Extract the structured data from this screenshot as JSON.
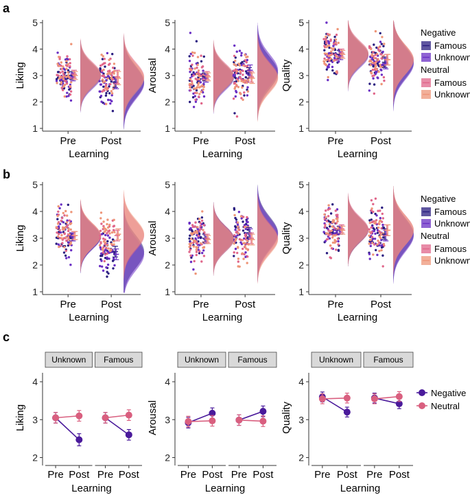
{
  "colors": {
    "neg_famous": "#2a1d80",
    "neg_unknown": "#6a2fc4",
    "neu_famous": "#e0668a",
    "neu_unknown": "#ee9578",
    "line_negative": "#4a1a9b",
    "line_neutral": "#d95f7f"
  },
  "chart_data": [
    {
      "panel": "a",
      "type": "raincloud",
      "ylabel": "Liking",
      "xlabel": "Learning",
      "categories": [
        "Pre",
        "Post"
      ],
      "ylim": [
        1,
        5
      ],
      "yticks": [
        1,
        2,
        3,
        4,
        5
      ],
      "series": [
        {
          "name": "Negative Famous",
          "pre": {
            "mean": 3.0,
            "ci": 0.15
          },
          "post": {
            "mean": 2.75,
            "ci": 0.2
          }
        },
        {
          "name": "Negative Unknown",
          "pre": {
            "mean": 2.95,
            "ci": 0.15
          },
          "post": {
            "mean": 2.7,
            "ci": 0.2
          }
        },
        {
          "name": "Neutral Famous",
          "pre": {
            "mean": 3.05,
            "ci": 0.15
          },
          "post": {
            "mean": 2.95,
            "ci": 0.25
          }
        },
        {
          "name": "Neutral Unknown",
          "pre": {
            "mean": 3.0,
            "ci": 0.15
          },
          "post": {
            "mean": 2.9,
            "ci": 0.25
          }
        }
      ]
    },
    {
      "panel": "a",
      "type": "raincloud",
      "ylabel": "Arousal",
      "xlabel": "Learning",
      "categories": [
        "Pre",
        "Post"
      ],
      "ylim": [
        1,
        5
      ],
      "yticks": [
        1,
        2,
        3,
        4,
        5
      ],
      "series": [
        {
          "name": "Negative Famous",
          "pre": {
            "mean": 2.95,
            "ci": 0.15
          },
          "post": {
            "mean": 3.1,
            "ci": 0.2
          }
        },
        {
          "name": "Negative Unknown",
          "pre": {
            "mean": 2.9,
            "ci": 0.15
          },
          "post": {
            "mean": 3.2,
            "ci": 0.2
          }
        },
        {
          "name": "Neutral Famous",
          "pre": {
            "mean": 3.0,
            "ci": 0.15
          },
          "post": {
            "mean": 2.95,
            "ci": 0.2
          }
        },
        {
          "name": "Neutral Unknown",
          "pre": {
            "mean": 2.95,
            "ci": 0.15
          },
          "post": {
            "mean": 2.9,
            "ci": 0.2
          }
        }
      ]
    },
    {
      "panel": "a",
      "type": "raincloud",
      "ylabel": "Quality",
      "xlabel": "Learning",
      "categories": [
        "Pre",
        "Post"
      ],
      "ylim": [
        1,
        5
      ],
      "yticks": [
        1,
        2,
        3,
        4,
        5
      ],
      "series": [
        {
          "name": "Negative Famous",
          "pre": {
            "mean": 3.8,
            "ci": 0.15
          },
          "post": {
            "mean": 3.5,
            "ci": 0.2
          }
        },
        {
          "name": "Negative Unknown",
          "pre": {
            "mean": 3.75,
            "ci": 0.15
          },
          "post": {
            "mean": 3.45,
            "ci": 0.2
          }
        },
        {
          "name": "Neutral Famous",
          "pre": {
            "mean": 3.85,
            "ci": 0.15
          },
          "post": {
            "mean": 3.6,
            "ci": 0.2
          }
        },
        {
          "name": "Neutral Unknown",
          "pre": {
            "mean": 3.8,
            "ci": 0.15
          },
          "post": {
            "mean": 3.6,
            "ci": 0.2
          }
        }
      ]
    },
    {
      "panel": "b",
      "type": "raincloud",
      "ylabel": "Liking",
      "xlabel": "Learning",
      "categories": [
        "Pre",
        "Post"
      ],
      "ylim": [
        1,
        5
      ],
      "yticks": [
        1,
        2,
        3,
        4,
        5
      ],
      "series": [
        {
          "name": "Negative Famous",
          "pre": {
            "mean": 3.05,
            "ci": 0.15
          },
          "post": {
            "mean": 2.5,
            "ci": 0.2
          }
        },
        {
          "name": "Negative Unknown",
          "pre": {
            "mean": 3.05,
            "ci": 0.15
          },
          "post": {
            "mean": 2.4,
            "ci": 0.2
          }
        },
        {
          "name": "Neutral Famous",
          "pre": {
            "mean": 3.1,
            "ci": 0.15
          },
          "post": {
            "mean": 3.1,
            "ci": 0.2
          }
        },
        {
          "name": "Neutral Unknown",
          "pre": {
            "mean": 3.1,
            "ci": 0.15
          },
          "post": {
            "mean": 3.15,
            "ci": 0.2
          }
        }
      ]
    },
    {
      "panel": "b",
      "type": "raincloud",
      "ylabel": "Arousal",
      "xlabel": "Learning",
      "categories": [
        "Pre",
        "Post"
      ],
      "ylim": [
        1,
        5
      ],
      "yticks": [
        1,
        2,
        3,
        4,
        5
      ],
      "series": [
        {
          "name": "Negative Famous",
          "pre": {
            "mean": 3.0,
            "ci": 0.15
          },
          "post": {
            "mean": 3.2,
            "ci": 0.2
          }
        },
        {
          "name": "Negative Unknown",
          "pre": {
            "mean": 2.95,
            "ci": 0.15
          },
          "post": {
            "mean": 3.15,
            "ci": 0.2
          }
        },
        {
          "name": "Neutral Famous",
          "pre": {
            "mean": 3.0,
            "ci": 0.15
          },
          "post": {
            "mean": 3.0,
            "ci": 0.2
          }
        },
        {
          "name": "Neutral Unknown",
          "pre": {
            "mean": 2.95,
            "ci": 0.15
          },
          "post": {
            "mean": 2.95,
            "ci": 0.2
          }
        }
      ]
    },
    {
      "panel": "b",
      "type": "raincloud",
      "ylabel": "Quality",
      "xlabel": "Learning",
      "categories": [
        "Pre",
        "Post"
      ],
      "ylim": [
        1,
        5
      ],
      "yticks": [
        1,
        2,
        3,
        4,
        5
      ],
      "series": [
        {
          "name": "Negative Famous",
          "pre": {
            "mean": 3.3,
            "ci": 0.15
          },
          "post": {
            "mean": 3.15,
            "ci": 0.2
          }
        },
        {
          "name": "Negative Unknown",
          "pre": {
            "mean": 3.3,
            "ci": 0.15
          },
          "post": {
            "mean": 3.1,
            "ci": 0.2
          }
        },
        {
          "name": "Neutral Famous",
          "pre": {
            "mean": 3.35,
            "ci": 0.15
          },
          "post": {
            "mean": 3.3,
            "ci": 0.2
          }
        },
        {
          "name": "Neutral Unknown",
          "pre": {
            "mean": 3.3,
            "ci": 0.15
          },
          "post": {
            "mean": 3.3,
            "ci": 0.2
          }
        }
      ]
    },
    {
      "panel": "c",
      "type": "line",
      "ylabel": "Liking",
      "xlabel": "Learning",
      "facets": [
        "Unknown",
        "Famous"
      ],
      "categories": [
        "Pre",
        "Post"
      ],
      "ylim": [
        1.9,
        4.2
      ],
      "yticks": [
        2,
        3,
        4
      ],
      "series": [
        {
          "name": "Negative",
          "Unknown": {
            "values": [
              3.05,
              2.47
            ],
            "err": [
              0.14,
              0.16
            ]
          },
          "Famous": {
            "values": [
              3.05,
              2.6
            ],
            "err": [
              0.14,
              0.14
            ]
          }
        },
        {
          "name": "Neutral",
          "Unknown": {
            "values": [
              3.05,
              3.1
            ],
            "err": [
              0.14,
              0.14
            ]
          },
          "Famous": {
            "values": [
              3.05,
              3.12
            ],
            "err": [
              0.14,
              0.14
            ]
          }
        }
      ]
    },
    {
      "panel": "c",
      "type": "line",
      "ylabel": "Arousal",
      "xlabel": "Learning",
      "facets": [
        "Unknown",
        "Famous"
      ],
      "categories": [
        "Pre",
        "Post"
      ],
      "ylim": [
        1.9,
        4.2
      ],
      "yticks": [
        2,
        3,
        4
      ],
      "series": [
        {
          "name": "Negative",
          "Unknown": {
            "values": [
              2.92,
              3.17
            ],
            "err": [
              0.14,
              0.14
            ]
          },
          "Famous": {
            "values": [
              2.99,
              3.22
            ],
            "err": [
              0.14,
              0.14
            ]
          }
        },
        {
          "name": "Neutral",
          "Unknown": {
            "values": [
              2.95,
              2.97
            ],
            "err": [
              0.14,
              0.14
            ]
          },
          "Famous": {
            "values": [
              2.99,
              2.96
            ],
            "err": [
              0.14,
              0.14
            ]
          }
        }
      ]
    },
    {
      "panel": "c",
      "type": "line",
      "ylabel": "Quality",
      "xlabel": "Learning",
      "facets": [
        "Unknown",
        "Famous"
      ],
      "categories": [
        "Pre",
        "Post"
      ],
      "ylim": [
        1.9,
        4.2
      ],
      "yticks": [
        2,
        3,
        4
      ],
      "series": [
        {
          "name": "Negative",
          "Unknown": {
            "values": [
              3.6,
              3.2
            ],
            "err": [
              0.13,
              0.13
            ]
          },
          "Famous": {
            "values": [
              3.57,
              3.42
            ],
            "err": [
              0.13,
              0.13
            ]
          }
        },
        {
          "name": "Neutral",
          "Unknown": {
            "values": [
              3.55,
              3.57
            ],
            "err": [
              0.13,
              0.13
            ]
          },
          "Famous": {
            "values": [
              3.55,
              3.61
            ],
            "err": [
              0.13,
              0.13
            ]
          }
        }
      ]
    }
  ],
  "panel_labels": [
    "a",
    "b",
    "c"
  ],
  "legend_ab": {
    "groups": [
      {
        "title": "Negative",
        "items": [
          "Famous",
          "Unknown"
        ]
      },
      {
        "title": "Neutral",
        "items": [
          "Famous",
          "Unknown"
        ]
      }
    ]
  },
  "legend_c": {
    "items": [
      "Negative",
      "Neutral"
    ]
  }
}
